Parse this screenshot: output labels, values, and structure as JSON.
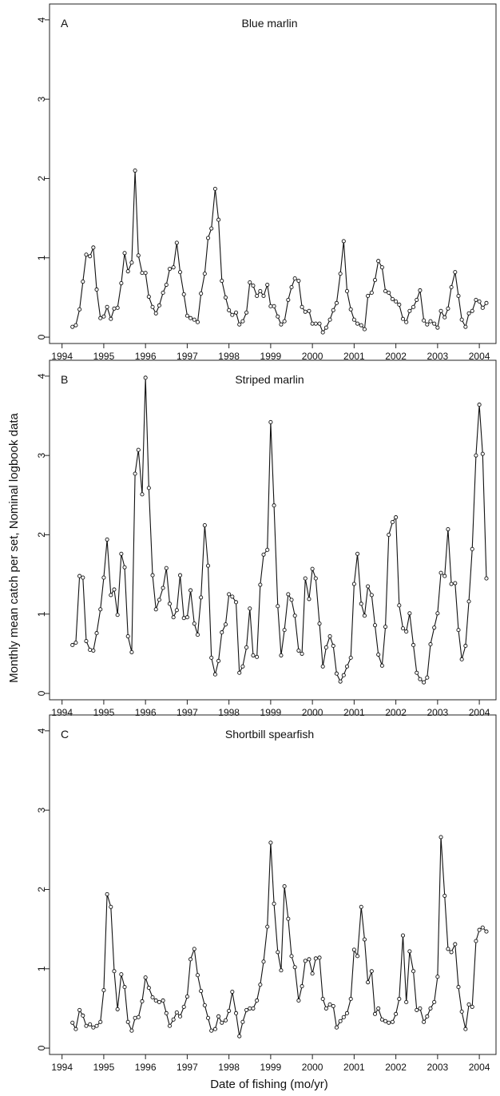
{
  "figure": {
    "ylabel": "Monthly mean catch per set, Nominal logbook data",
    "xlabel": "Date of fishing (mo/yr)"
  },
  "chart_data": [
    {
      "type": "line",
      "panel_letter": "A",
      "title": "Blue marlin",
      "x_ticks": [
        "1994",
        "1995",
        "1996",
        "1997",
        "1998",
        "1999",
        "2000",
        "2001",
        "2002",
        "2003",
        "2004"
      ],
      "y_ticks": [
        "0",
        "1",
        "2",
        "3",
        "4"
      ],
      "xlim": [
        1993.7,
        2004.4
      ],
      "ylim": [
        -0.08,
        4.2
      ],
      "x": [
        1994.25,
        1994.33,
        1994.42,
        1994.5,
        1994.58,
        1994.67,
        1994.75,
        1994.83,
        1994.92,
        1995.0,
        1995.08,
        1995.17,
        1995.25,
        1995.33,
        1995.42,
        1995.5,
        1995.58,
        1995.67,
        1995.75,
        1995.83,
        1995.92,
        1996.0,
        1996.08,
        1996.17,
        1996.25,
        1996.33,
        1996.42,
        1996.5,
        1996.58,
        1996.67,
        1996.75,
        1996.83,
        1996.92,
        1997.0,
        1997.08,
        1997.17,
        1997.25,
        1997.33,
        1997.42,
        1997.5,
        1997.58,
        1997.67,
        1997.75,
        1997.83,
        1997.92,
        1998.0,
        1998.08,
        1998.17,
        1998.25,
        1998.33,
        1998.42,
        1998.5,
        1998.58,
        1998.67,
        1998.75,
        1998.83,
        1998.92,
        1999.0,
        1999.08,
        1999.17,
        1999.25,
        1999.33,
        1999.42,
        1999.5,
        1999.58,
        1999.67,
        1999.75,
        1999.83,
        1999.92,
        2000.0,
        2000.08,
        2000.17,
        2000.25,
        2000.33,
        2000.42,
        2000.5,
        2000.58,
        2000.67,
        2000.75,
        2000.83,
        2000.92,
        2001.0,
        2001.08,
        2001.17,
        2001.25,
        2001.33,
        2001.42,
        2001.5,
        2001.58,
        2001.67,
        2001.75,
        2001.83,
        2001.92,
        2002.0,
        2002.08,
        2002.17,
        2002.25,
        2002.33,
        2002.42,
        2002.5,
        2002.58,
        2002.67,
        2002.75,
        2002.83,
        2002.92,
        2003.0,
        2003.08,
        2003.17,
        2003.25,
        2003.33,
        2003.42,
        2003.5,
        2003.58,
        2003.67,
        2003.75,
        2003.83,
        2003.92,
        2004.0,
        2004.08,
        2004.17
      ],
      "series": [
        {
          "values": [
            0.13,
            0.15,
            0.35,
            0.7,
            1.04,
            1.02,
            1.13,
            0.6,
            0.24,
            0.26,
            0.38,
            0.23,
            0.36,
            0.37,
            0.68,
            1.06,
            0.83,
            0.94,
            2.1,
            1.03,
            0.81,
            0.81,
            0.51,
            0.38,
            0.3,
            0.4,
            0.56,
            0.66,
            0.86,
            0.88,
            1.19,
            0.82,
            0.54,
            0.27,
            0.24,
            0.22,
            0.19,
            0.55,
            0.8,
            1.25,
            1.37,
            1.87,
            1.48,
            0.71,
            0.5,
            0.34,
            0.28,
            0.31,
            0.16,
            0.2,
            0.31,
            0.69,
            0.65,
            0.52,
            0.58,
            0.52,
            0.66,
            0.39,
            0.39,
            0.26,
            0.16,
            0.2,
            0.47,
            0.63,
            0.74,
            0.71,
            0.38,
            0.32,
            0.33,
            0.17,
            0.17,
            0.17,
            0.06,
            0.12,
            0.22,
            0.34,
            0.43,
            0.8,
            1.21,
            0.58,
            0.35,
            0.22,
            0.17,
            0.15,
            0.1,
            0.52,
            0.56,
            0.72,
            0.96,
            0.88,
            0.58,
            0.56,
            0.48,
            0.45,
            0.41,
            0.23,
            0.19,
            0.33,
            0.38,
            0.47,
            0.59,
            0.21,
            0.16,
            0.2,
            0.17,
            0.12,
            0.33,
            0.25,
            0.36,
            0.63,
            0.82,
            0.52,
            0.22,
            0.13,
            0.3,
            0.33,
            0.47,
            0.45,
            0.37,
            0.43
          ]
        }
      ]
    },
    {
      "type": "line",
      "panel_letter": "B",
      "title": "Striped marlin",
      "x_ticks": [
        "1994",
        "1995",
        "1996",
        "1997",
        "1998",
        "1999",
        "2000",
        "2001",
        "2002",
        "2003",
        "2004"
      ],
      "y_ticks": [
        "0",
        "1",
        "2",
        "3",
        "4"
      ],
      "xlim": [
        1993.7,
        2004.4
      ],
      "ylim": [
        -0.08,
        4.2
      ],
      "x": [
        1994.25,
        1994.33,
        1994.42,
        1994.5,
        1994.58,
        1994.67,
        1994.75,
        1994.83,
        1994.92,
        1995.0,
        1995.08,
        1995.17,
        1995.25,
        1995.33,
        1995.42,
        1995.5,
        1995.58,
        1995.67,
        1995.75,
        1995.83,
        1995.92,
        1996.0,
        1996.08,
        1996.17,
        1996.25,
        1996.33,
        1996.42,
        1996.5,
        1996.58,
        1996.67,
        1996.75,
        1996.83,
        1996.92,
        1997.0,
        1997.08,
        1997.17,
        1997.25,
        1997.33,
        1997.42,
        1997.5,
        1997.58,
        1997.67,
        1997.75,
        1997.83,
        1997.92,
        1998.0,
        1998.08,
        1998.17,
        1998.25,
        1998.33,
        1998.42,
        1998.5,
        1998.58,
        1998.67,
        1998.75,
        1998.83,
        1998.92,
        1999.0,
        1999.08,
        1999.17,
        1999.25,
        1999.33,
        1999.42,
        1999.5,
        1999.58,
        1999.67,
        1999.75,
        1999.83,
        1999.92,
        2000.0,
        2000.08,
        2000.17,
        2000.25,
        2000.33,
        2000.42,
        2000.5,
        2000.58,
        2000.67,
        2000.75,
        2000.83,
        2000.92,
        2001.0,
        2001.08,
        2001.17,
        2001.25,
        2001.33,
        2001.42,
        2001.5,
        2001.58,
        2001.67,
        2001.75,
        2001.83,
        2001.92,
        2002.0,
        2002.08,
        2002.17,
        2002.25,
        2002.33,
        2002.42,
        2002.5,
        2002.58,
        2002.67,
        2002.75,
        2002.83,
        2002.92,
        2003.0,
        2003.08,
        2003.17,
        2003.25,
        2003.33,
        2003.42,
        2003.5,
        2003.58,
        2003.67,
        2003.75,
        2003.83,
        2003.92,
        2004.0,
        2004.08,
        2004.17
      ],
      "series": [
        {
          "values": [
            0.61,
            0.64,
            1.48,
            1.46,
            0.66,
            0.55,
            0.54,
            0.76,
            1.06,
            1.46,
            1.94,
            1.24,
            1.31,
            0.99,
            1.76,
            1.59,
            0.72,
            0.52,
            2.77,
            3.07,
            2.51,
            3.98,
            2.59,
            1.49,
            1.06,
            1.18,
            1.33,
            1.58,
            1.13,
            0.96,
            1.05,
            1.49,
            0.95,
            0.96,
            1.3,
            0.88,
            0.74,
            1.21,
            2.12,
            1.61,
            0.45,
            0.24,
            0.41,
            0.77,
            0.87,
            1.25,
            1.22,
            1.15,
            0.26,
            0.34,
            0.58,
            1.07,
            0.48,
            0.46,
            1.37,
            1.75,
            1.81,
            3.42,
            2.37,
            1.1,
            0.48,
            0.8,
            1.25,
            1.18,
            0.98,
            0.54,
            0.5,
            1.45,
            1.19,
            1.57,
            1.45,
            0.88,
            0.34,
            0.58,
            0.72,
            0.6,
            0.25,
            0.15,
            0.23,
            0.34,
            0.45,
            1.38,
            1.76,
            1.13,
            0.98,
            1.35,
            1.24,
            0.86,
            0.49,
            0.35,
            0.84,
            2.0,
            2.16,
            2.22,
            1.11,
            0.82,
            0.78,
            1.01,
            0.61,
            0.26,
            0.18,
            0.14,
            0.2,
            0.62,
            0.83,
            1.01,
            1.52,
            1.48,
            2.07,
            1.38,
            1.39,
            0.8,
            0.43,
            0.6,
            1.16,
            1.82,
            3.0,
            3.64,
            3.02,
            1.45
          ]
        }
      ]
    },
    {
      "type": "line",
      "panel_letter": "C",
      "title": "Shortbill spearfish",
      "x_ticks": [
        "1994",
        "1995",
        "1996",
        "1997",
        "1998",
        "1999",
        "2000",
        "2001",
        "2002",
        "2003",
        "2004"
      ],
      "y_ticks": [
        "0",
        "1",
        "2",
        "3",
        "4"
      ],
      "xlim": [
        1993.7,
        2004.4
      ],
      "ylim": [
        -0.08,
        4.2
      ],
      "x": [
        1994.25,
        1994.33,
        1994.42,
        1994.5,
        1994.58,
        1994.67,
        1994.75,
        1994.83,
        1994.92,
        1995.0,
        1995.08,
        1995.17,
        1995.25,
        1995.33,
        1995.42,
        1995.5,
        1995.58,
        1995.67,
        1995.75,
        1995.83,
        1995.92,
        1996.0,
        1996.08,
        1996.17,
        1996.25,
        1996.33,
        1996.42,
        1996.5,
        1996.58,
        1996.67,
        1996.75,
        1996.83,
        1996.92,
        1997.0,
        1997.08,
        1997.17,
        1997.25,
        1997.33,
        1997.42,
        1997.5,
        1997.58,
        1997.67,
        1997.75,
        1997.83,
        1997.92,
        1998.0,
        1998.08,
        1998.17,
        1998.25,
        1998.33,
        1998.42,
        1998.5,
        1998.58,
        1998.67,
        1998.75,
        1998.83,
        1998.92,
        1999.0,
        1999.08,
        1999.17,
        1999.25,
        1999.33,
        1999.42,
        1999.5,
        1999.58,
        1999.67,
        1999.75,
        1999.83,
        1999.92,
        2000.0,
        2000.08,
        2000.17,
        2000.25,
        2000.33,
        2000.42,
        2000.5,
        2000.58,
        2000.67,
        2000.75,
        2000.83,
        2000.92,
        2001.0,
        2001.08,
        2001.17,
        2001.25,
        2001.33,
        2001.42,
        2001.5,
        2001.58,
        2001.67,
        2001.75,
        2001.83,
        2001.92,
        2002.0,
        2002.08,
        2002.17,
        2002.25,
        2002.33,
        2002.42,
        2002.5,
        2002.58,
        2002.67,
        2002.75,
        2002.83,
        2002.92,
        2003.0,
        2003.08,
        2003.17,
        2003.25,
        2003.33,
        2003.42,
        2003.5,
        2003.58,
        2003.67,
        2003.75,
        2003.83,
        2003.92,
        2004.0,
        2004.08,
        2004.17
      ],
      "series": [
        {
          "values": [
            0.32,
            0.24,
            0.48,
            0.41,
            0.28,
            0.3,
            0.26,
            0.28,
            0.33,
            0.73,
            1.94,
            1.78,
            0.97,
            0.49,
            0.93,
            0.77,
            0.33,
            0.22,
            0.38,
            0.39,
            0.59,
            0.89,
            0.76,
            0.64,
            0.6,
            0.58,
            0.6,
            0.44,
            0.28,
            0.36,
            0.45,
            0.4,
            0.52,
            0.65,
            1.12,
            1.25,
            0.92,
            0.72,
            0.54,
            0.38,
            0.22,
            0.24,
            0.4,
            0.32,
            0.35,
            0.47,
            0.71,
            0.44,
            0.15,
            0.33,
            0.48,
            0.5,
            0.5,
            0.6,
            0.8,
            1.09,
            1.53,
            2.59,
            1.82,
            1.21,
            0.98,
            2.04,
            1.63,
            1.16,
            1.02,
            0.6,
            0.78,
            1.1,
            1.12,
            0.94,
            1.13,
            1.14,
            0.62,
            0.5,
            0.55,
            0.53,
            0.26,
            0.34,
            0.39,
            0.44,
            0.62,
            1.24,
            1.16,
            1.78,
            1.37,
            0.83,
            0.97,
            0.43,
            0.5,
            0.36,
            0.34,
            0.32,
            0.33,
            0.43,
            0.62,
            1.42,
            0.58,
            1.22,
            0.97,
            0.48,
            0.5,
            0.33,
            0.4,
            0.5,
            0.58,
            0.9,
            2.66,
            1.92,
            1.25,
            1.21,
            1.31,
            0.77,
            0.46,
            0.24,
            0.55,
            0.52,
            1.35,
            1.49,
            1.52,
            1.47
          ]
        }
      ]
    }
  ]
}
